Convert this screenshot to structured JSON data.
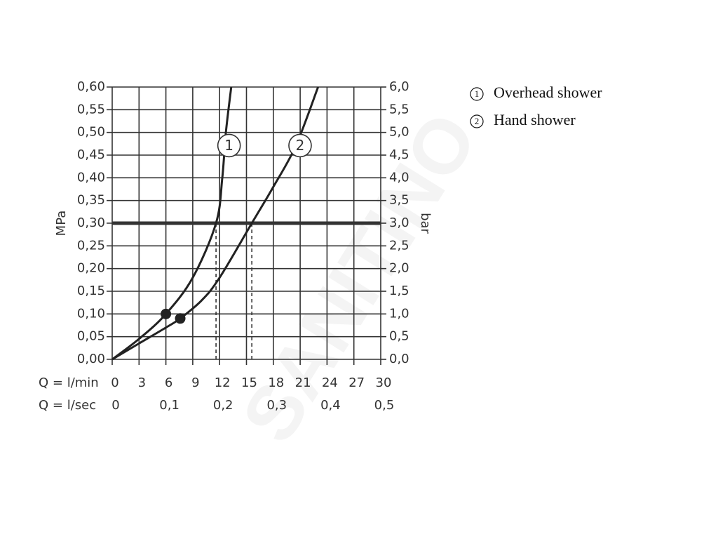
{
  "chart_data": {
    "type": "line",
    "watermark": "SANITINO",
    "ylabel": "MPa",
    "y2label": "bar",
    "xlabel": "Q = l/min",
    "x2label": "Q = l/sec",
    "xlim": [
      0,
      30
    ],
    "xticks": [
      0,
      3,
      6,
      9,
      12,
      15,
      18,
      21,
      24,
      27,
      30
    ],
    "x2lim": [
      0,
      0.5
    ],
    "x2ticks": [
      0,
      {
        "value": 0.1,
        "label": "0,1"
      },
      {
        "value": 0.2,
        "label": "0,2"
      },
      {
        "value": 0.3,
        "label": "0,3"
      },
      {
        "value": 0.4,
        "label": "0,4"
      },
      {
        "value": 0.5,
        "label": "0,5"
      }
    ],
    "ylim": [
      0,
      0.6
    ],
    "yticks": [
      {
        "value": 0,
        "label": "0,00"
      },
      {
        "value": 0.05,
        "label": "0,05"
      },
      {
        "value": 0.1,
        "label": "0,10"
      },
      {
        "value": 0.15,
        "label": "0,15"
      },
      {
        "value": 0.2,
        "label": "0,20"
      },
      {
        "value": 0.25,
        "label": "0,25"
      },
      {
        "value": 0.3,
        "label": "0,30"
      },
      {
        "value": 0.35,
        "label": "0,35"
      },
      {
        "value": 0.4,
        "label": "0,40"
      },
      {
        "value": 0.45,
        "label": "0,45"
      },
      {
        "value": 0.5,
        "label": "0,50"
      },
      {
        "value": 0.55,
        "label": "0,55"
      },
      {
        "value": 0.6,
        "label": "0,60"
      }
    ],
    "y2lim": [
      0,
      6
    ],
    "y2ticks": [
      {
        "value": 0,
        "label": "0,0"
      },
      {
        "value": 0.5,
        "label": "0,5"
      },
      {
        "value": 1,
        "label": "1,0"
      },
      {
        "value": 1.5,
        "label": "1,5"
      },
      {
        "value": 2,
        "label": "2,0"
      },
      {
        "value": 2.5,
        "label": "2,5"
      },
      {
        "value": 3,
        "label": "3,0"
      },
      {
        "value": 3.5,
        "label": "3,5"
      },
      {
        "value": 4,
        "label": "4,0"
      },
      {
        "value": 4.5,
        "label": "4,5"
      },
      {
        "value": 5,
        "label": "5,0"
      },
      {
        "value": 5.5,
        "label": "5,5"
      },
      {
        "value": 6,
        "label": "6,0"
      }
    ],
    "grid": true,
    "reference_line": 0.3,
    "series": [
      {
        "name": "Overhead shower",
        "label": "1",
        "color": "#222222",
        "x": [
          0,
          3,
          6,
          9,
          11.6,
          12.3,
          12.7,
          13.3
        ],
        "values": [
          0,
          0.045,
          0.1,
          0.18,
          0.3,
          0.4,
          0.5,
          0.6
        ],
        "marker": {
          "x": 6,
          "y": 0.1
        }
      },
      {
        "name": "Hand shower",
        "label": "2",
        "color": "#222222",
        "x": [
          0,
          3,
          6,
          7.6,
          10,
          12,
          15.6,
          18,
          20.5,
          23
        ],
        "values": [
          0,
          0.035,
          0.07,
          0.09,
          0.13,
          0.18,
          0.3,
          0.38,
          0.47,
          0.6
        ],
        "marker": {
          "x": 7.6,
          "y": 0.09
        }
      }
    ]
  }
}
